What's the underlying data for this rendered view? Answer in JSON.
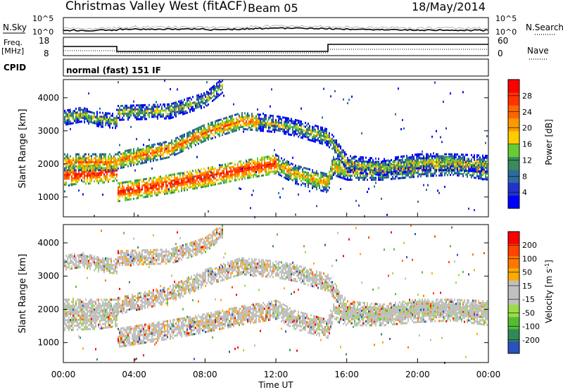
{
  "header": {
    "title": "Christmas Valley West (fitACF)",
    "beam": "Beam 05",
    "date": "18/May/2014"
  },
  "panels": {
    "noise": {
      "left_label": "N.Sky",
      "right_label": "N.Search",
      "left_ticks": [
        "10^5",
        "10^0"
      ],
      "right_ticks": [
        "10^5",
        "10^0"
      ]
    },
    "freq": {
      "left_label_line1": "Freq.",
      "left_label_line2": "[MHz]",
      "right_label": "Nave",
      "left_ticks": [
        "18",
        "8"
      ],
      "right_ticks": [
        "60",
        "0"
      ]
    },
    "cpid": {
      "label": "CPID",
      "text": "normal (fast) 151 IF"
    }
  },
  "chart_data": [
    {
      "type": "heatmap",
      "title": "Power",
      "ylabel": "Slant Range [km]",
      "ylim": [
        400,
        4550
      ],
      "yticks": [
        1000,
        2000,
        3000,
        4000
      ],
      "colorbar": {
        "label": "Power [dB]",
        "tick_labels": [
          "4",
          "8",
          "12",
          "16",
          "20",
          "24",
          "28"
        ],
        "colors": [
          "#0000ff",
          "#2233cc",
          "#2d6b9c",
          "#3a8a5a",
          "#66cc33",
          "#ffcc00",
          "#ff9900",
          "#ff6600",
          "#ff3300",
          "#ff0000"
        ]
      },
      "bands": [
        {
          "x": [
            0,
            2,
            3,
            3.05,
            6,
            8,
            10,
            12,
            13,
            14.9,
            15.2,
            16,
            18,
            20,
            22,
            24
          ],
          "center": [
            1650,
            1700,
            1780,
            1150,
            1400,
            1600,
            1820,
            2000,
            1700,
            1420,
            1950,
            1800,
            1800,
            1900,
            1950,
            1800
          ]
        },
        {
          "x": [
            0,
            2,
            3,
            3.05,
            6,
            8,
            10,
            12,
            13,
            14.9,
            15.2,
            16,
            18,
            20,
            22,
            24
          ],
          "center": [
            2050,
            2050,
            2050,
            2100,
            2450,
            2950,
            3300,
            3200,
            3100,
            2800,
            2600,
            2000,
            1900,
            2050,
            2050,
            2000
          ]
        },
        {
          "x": [
            0,
            1,
            2,
            3,
            3.05,
            6,
            8,
            9
          ],
          "center": [
            3400,
            3500,
            3350,
            3300,
            3550,
            3600,
            3950,
            4400
          ]
        }
      ]
    },
    {
      "type": "heatmap",
      "title": "Velocity",
      "ylabel": "Slant Range [km]",
      "ylim": [
        400,
        4550
      ],
      "yticks": [
        1000,
        2000,
        3000,
        4000
      ],
      "colorbar": {
        "label": "Velocity [m s^-1]",
        "tick_labels": [
          "200",
          "100",
          "50",
          "15",
          "-15",
          "-50",
          "-100",
          "-200"
        ],
        "colors": [
          "#2a52be",
          "#2e8b57",
          "#55bb33",
          "#99dd44",
          "#c0c0c0",
          "#c0c0c0",
          "#ffaa00",
          "#ff7700",
          "#ff4400",
          "#ff0000"
        ]
      }
    }
  ],
  "xaxis": {
    "label": "Time UT",
    "ticks": [
      "00:00",
      "04:00",
      "08:00",
      "12:00",
      "16:00",
      "20:00",
      "00:00"
    ]
  }
}
